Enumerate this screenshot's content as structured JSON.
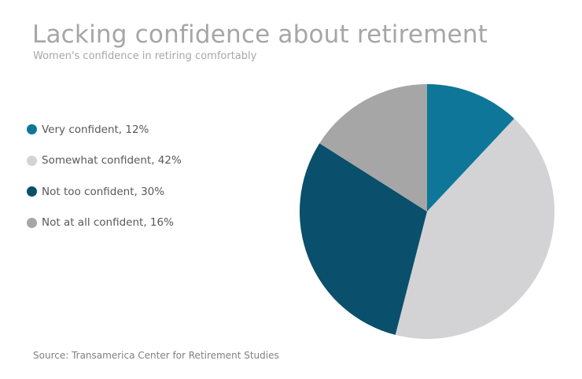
{
  "chart_data": {
    "type": "pie",
    "title": "Lacking confidence about retirement",
    "subtitle": "Women's confidence in retiring comfortably",
    "categories": [
      "Very confident",
      "Somewhat confident",
      "Not too confident",
      "Not at all confident"
    ],
    "values": [
      12,
      42,
      30,
      16
    ],
    "unit": "%",
    "legend_labels": [
      "Very confident, 12%",
      "Somewhat confident, 42%",
      "Not too confident, 30%",
      "Not at all confident, 16%"
    ],
    "colors": [
      "#0e7799",
      "#d3d2d4",
      "#0a4f6b",
      "#a6a6a6"
    ],
    "legend_position": "left",
    "source": "Source: Transamerica Center for Retirement Studies"
  }
}
